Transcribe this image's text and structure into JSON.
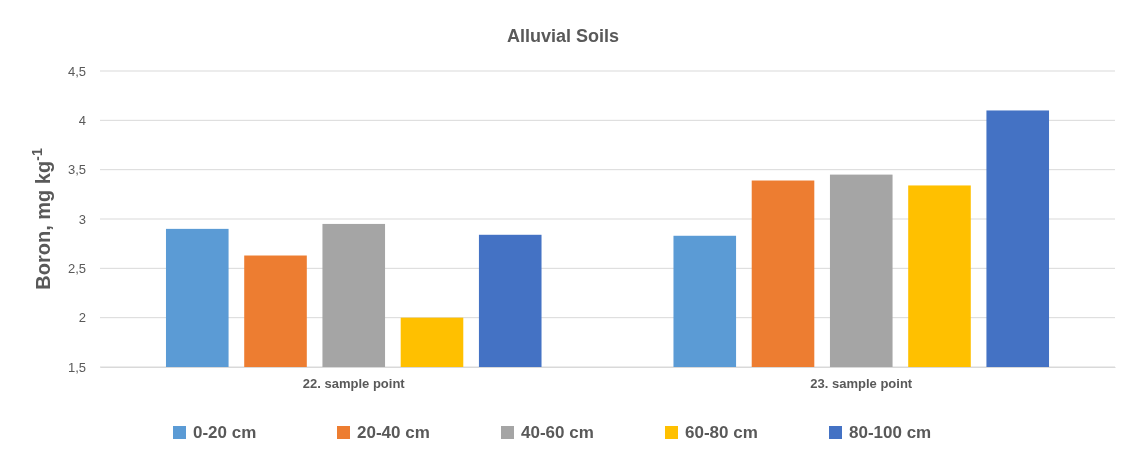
{
  "chart_data": {
    "type": "bar",
    "title": "Alluvial Soils",
    "ylabel": "Boron, mg kg$^{-1}$",
    "categories": [
      "22. sample point",
      "23. sample point"
    ],
    "series": [
      {
        "name": "0-20 cm",
        "color": "#5b9bd5",
        "values": [
          2.9,
          2.83
        ]
      },
      {
        "name": "20-40 cm",
        "color": "#ed7d31",
        "values": [
          2.63,
          3.39
        ]
      },
      {
        "name": "40-60 cm",
        "color": "#a5a5a5",
        "values": [
          2.95,
          3.45
        ]
      },
      {
        "name": "60-80 cm",
        "color": "#ffc000",
        "values": [
          2.0,
          3.34
        ]
      },
      {
        "name": "80-100 cm",
        "color": "#4472c4",
        "values": [
          2.84,
          4.1
        ]
      }
    ],
    "ylim": [
      1.5,
      4.5
    ],
    "yticks": [
      {
        "value": 1.5,
        "label": "1,5"
      },
      {
        "value": 2,
        "label": "2"
      },
      {
        "value": 2.5,
        "label": "2,5"
      },
      {
        "value": 3,
        "label": "3"
      },
      {
        "value": 3.5,
        "label": "3,5"
      },
      {
        "value": 4,
        "label": "4"
      },
      {
        "value": 4.5,
        "label": "4,5"
      }
    ],
    "grid": "y",
    "legend": "bottom"
  }
}
